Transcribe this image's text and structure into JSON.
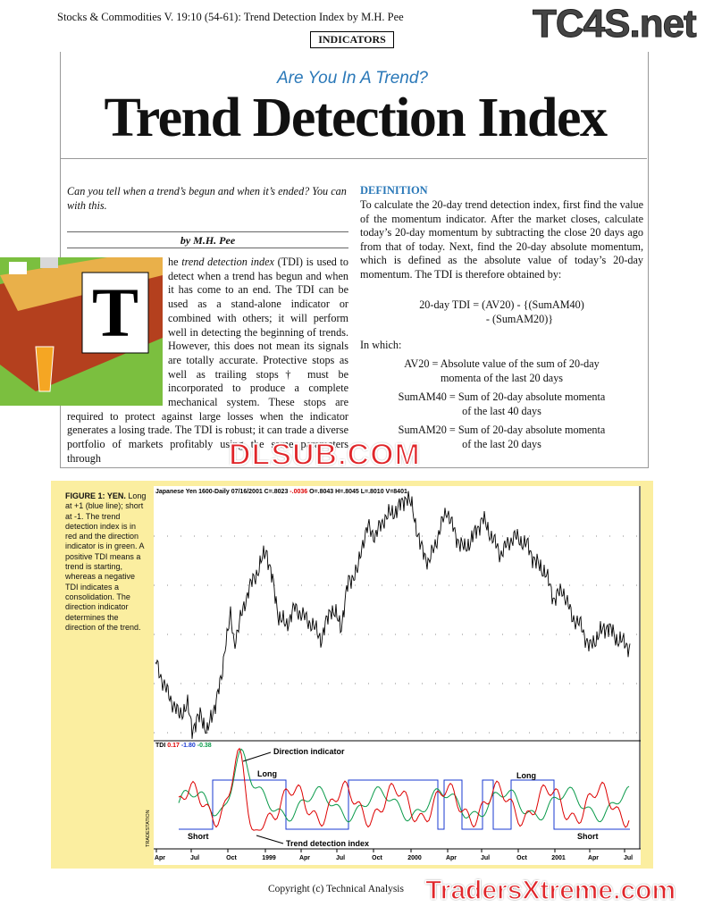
{
  "header": {
    "running_head": "Stocks & Commodities V. 19:10 (54-61): Trend Detection Index by M.H. Pee",
    "watermark": "TC4S.net",
    "section": "INDICATORS"
  },
  "article": {
    "kicker": "Are You In A Trend?",
    "title": "Trend Detection Index",
    "deck": "Can you tell when a trend’s begun and when it’s ended? You can with this.",
    "byline": "by M.H. Pee",
    "drop_cap": "T",
    "body": [
      "he ",
      "trend detection index",
      " (TDI) is used to detect when a trend has begun and when it has come to an end. The TDI can be used as a stand-alone indicator or combined with others; it will perform well in detecting the beginning of trends. However, this does not mean its signals are totally accurate. Protective stops as well as trailing stops† must be incorporated to produce a complete mechanical system. These stops are required to protect against large losses when the indicator generates a losing trade. The TDI is robust; it can trade a diverse portfolio of markets profitably using the same parameters through"
    ],
    "definition": {
      "heading": "DEFINITION",
      "text": "To calculate the 20-day trend detection index, first find the value of the momentum indicator. After the market closes, calculate today’s 20-day momentum by subtracting the close 20 days ago from that of today. Next, find the 20-day absolute momentum, which is defined as the absolute value of today’s 20-day momentum. The TDI is therefore obtained by:",
      "formula": [
        "20-day TDI = (AV20) - {(SumAM40)",
        "- (SumAM20)}"
      ],
      "in_which": "In which:",
      "terms": [
        [
          "AV20 = Absolute value of the sum of 20-day",
          "momenta of the last 20 days"
        ],
        [
          "SumAM40 = Sum of 20-day absolute momenta",
          "of the last 40 days"
        ],
        [
          "SumAM20 = Sum of 20-day absolute momenta",
          "of the last 20 days"
        ]
      ]
    },
    "watermark": "DLSUB.COM"
  },
  "figure": {
    "caption_label": "FIGURE 1: YEN.",
    "caption": "Long at +1 (blue line); short at -1. The trend detection index is in red and the direction indicator is in green. A positive TDI means a trend is starting, whereas a negative TDI indicates a consolidation. The direction indicator determines the direction of the trend.",
    "chart_header": [
      "Japanese Yen 1600-Daily  07/16/2001  C=.8023",
      "-.0036",
      "O=.8043  H=.8045  L=.8010  V=8401"
    ],
    "tdi_legend": [
      "TDI",
      "0.17",
      "-1.80",
      "-0.38"
    ],
    "annotations": {
      "direction": "Direction indicator",
      "long1": "Long",
      "short1": "Short",
      "tdi": "Trend detection index",
      "long2": "Long",
      "short2": "Short"
    },
    "vendor": "TRADESTATION",
    "x_labels": [
      "Apr",
      "Jul",
      "Oct",
      "1999",
      "Apr",
      "Jul",
      "Oct",
      "2000",
      "Apr",
      "Jul",
      "Oct",
      "2001",
      "Apr",
      "Jul"
    ]
  },
  "footer": {
    "copyright": "Copyright (c) Technical Analysis",
    "watermark": "TradersXtreme.com"
  }
}
